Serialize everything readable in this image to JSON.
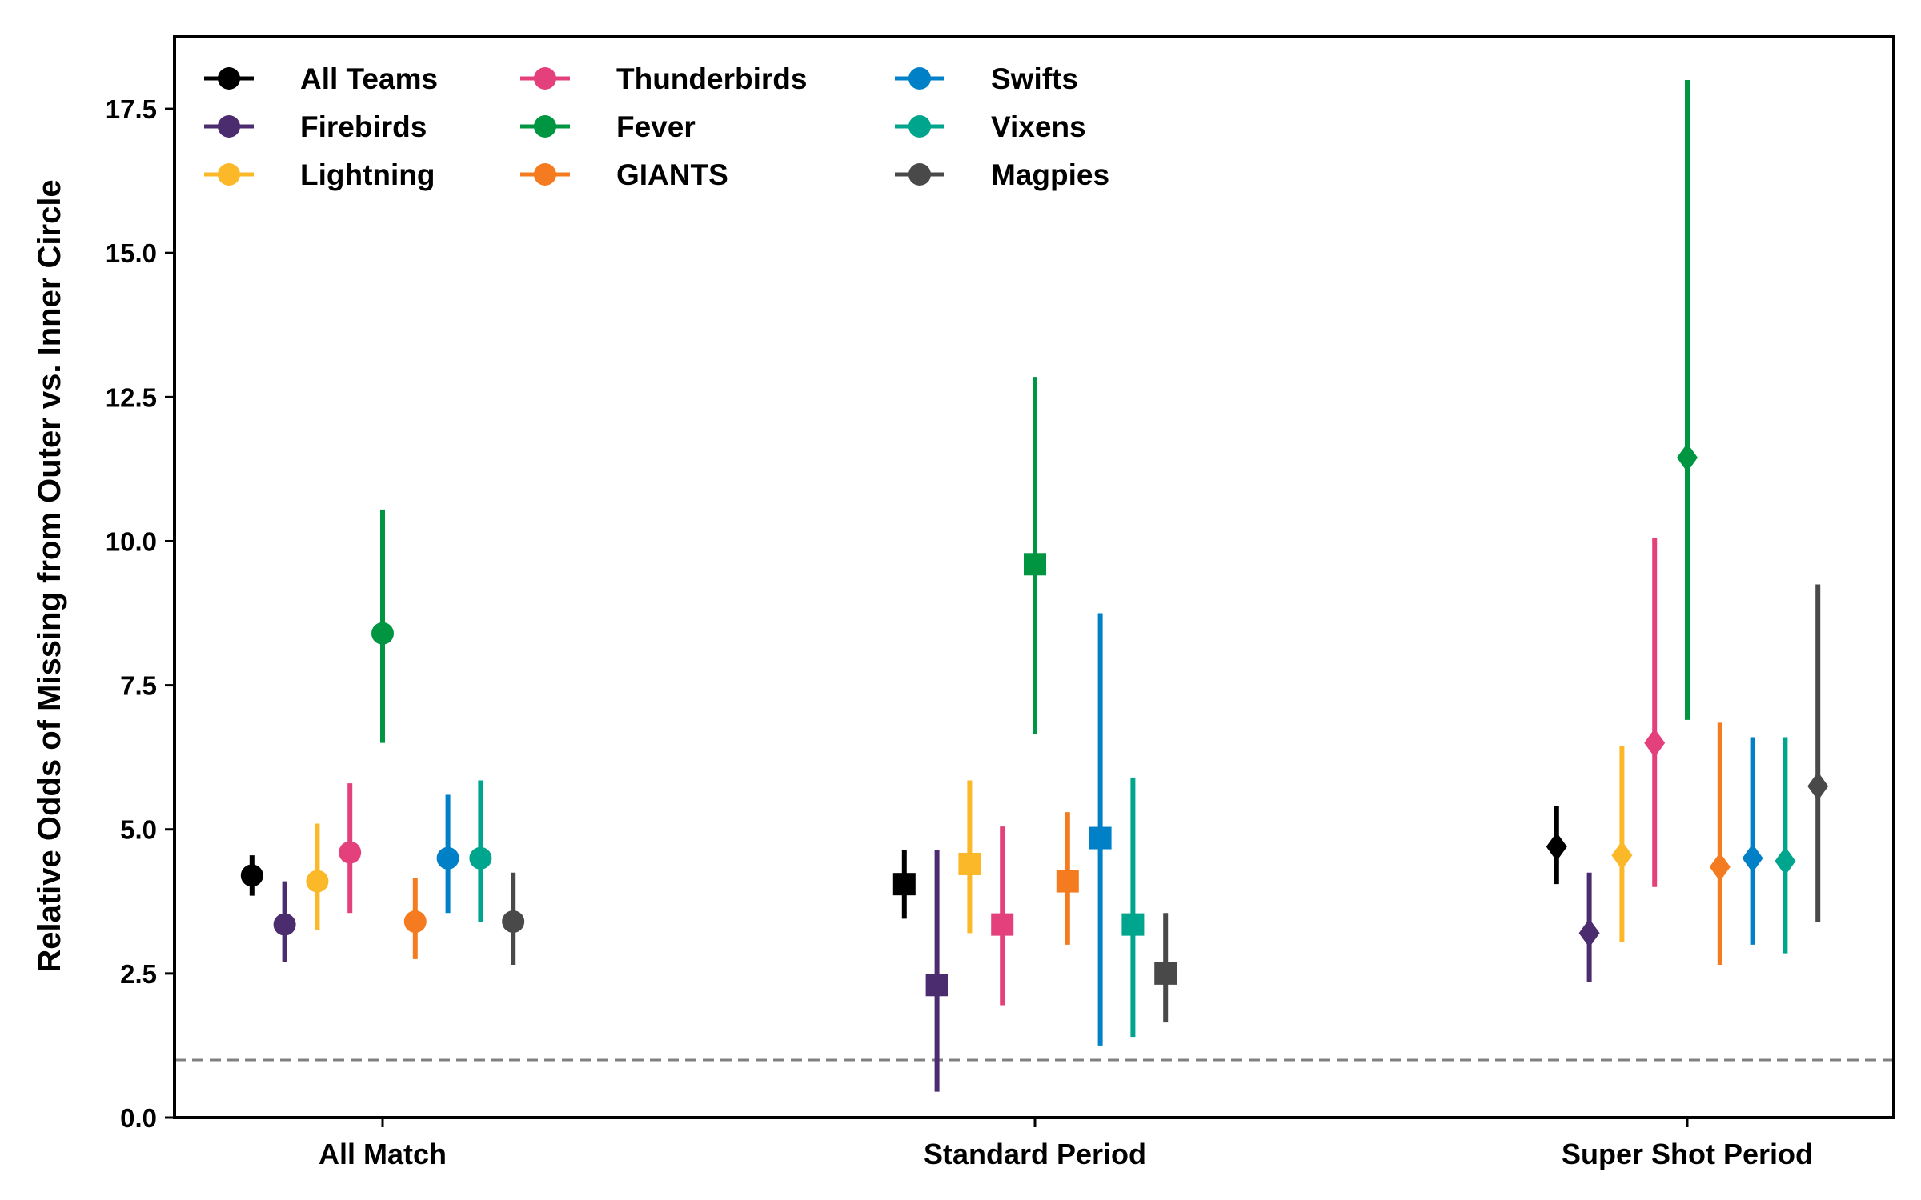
{
  "chart_data": {
    "type": "scatter",
    "xlabel": "",
    "ylabel": "Relative Odds of Missing from Outer vs. Inner Circle",
    "ylim": [
      0,
      18.75
    ],
    "yticks": [
      "0.0",
      "2.5",
      "5.0",
      "7.5",
      "10.0",
      "12.5",
      "15.0",
      "17.5"
    ],
    "reference_line": 1.0,
    "categories": [
      "All Match",
      "Standard Period",
      "Super Shot Period"
    ],
    "markers": [
      "circle",
      "square",
      "diamond"
    ],
    "grid": false,
    "legend_position": "top-left",
    "series": [
      {
        "name": "All Teams",
        "color": "#000000",
        "values": [
          4.2,
          4.05,
          4.7
        ],
        "lower": [
          3.85,
          3.45,
          4.05
        ],
        "upper": [
          4.55,
          4.65,
          5.4
        ]
      },
      {
        "name": "Firebirds",
        "color": "#4b2c6f",
        "values": [
          3.35,
          2.3,
          3.2
        ],
        "lower": [
          2.7,
          0.45,
          2.35
        ],
        "upper": [
          4.1,
          4.65,
          4.25
        ]
      },
      {
        "name": "Lightning",
        "color": "#fbb829",
        "values": [
          4.1,
          4.4,
          4.55
        ],
        "lower": [
          3.25,
          3.2,
          3.05
        ],
        "upper": [
          5.1,
          5.85,
          6.45
        ]
      },
      {
        "name": "Thunderbirds",
        "color": "#e4417c",
        "values": [
          4.6,
          3.35,
          6.5
        ],
        "lower": [
          3.55,
          1.95,
          4.0
        ],
        "upper": [
          5.8,
          5.05,
          10.05
        ]
      },
      {
        "name": "Fever",
        "color": "#009641",
        "values": [
          8.4,
          9.6,
          11.45
        ],
        "lower": [
          6.5,
          6.65,
          6.9
        ],
        "upper": [
          10.55,
          12.85,
          18.0
        ]
      },
      {
        "name": "GIANTS",
        "color": "#f47b20",
        "values": [
          3.4,
          4.1,
          4.35
        ],
        "lower": [
          2.75,
          3.0,
          2.65
        ],
        "upper": [
          4.15,
          5.3,
          6.85
        ]
      },
      {
        "name": "Swifts",
        "color": "#0080c6",
        "values": [
          4.5,
          4.85,
          4.5
        ],
        "lower": [
          3.55,
          1.25,
          3.0
        ],
        "upper": [
          5.6,
          8.75,
          6.6
        ]
      },
      {
        "name": "Vixens",
        "color": "#00a58d",
        "values": [
          4.5,
          3.35,
          4.45
        ],
        "lower": [
          3.4,
          1.4,
          2.85
        ],
        "upper": [
          5.85,
          5.9,
          6.6
        ]
      },
      {
        "name": "Magpies",
        "color": "#494949",
        "values": [
          3.4,
          2.5,
          5.75
        ],
        "lower": [
          2.65,
          1.65,
          3.4
        ],
        "upper": [
          4.25,
          3.55,
          9.25
        ]
      }
    ]
  }
}
